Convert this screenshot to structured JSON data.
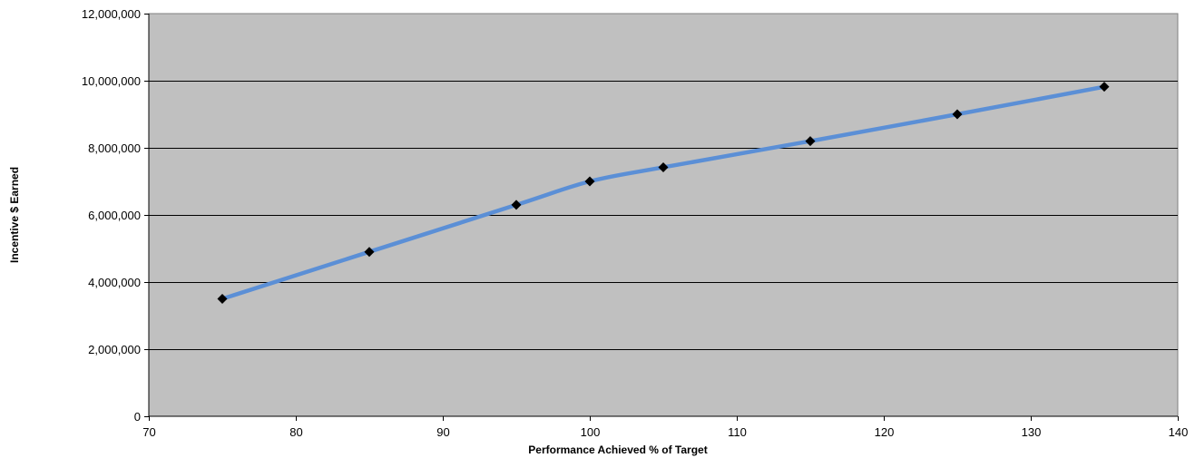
{
  "chart_data": {
    "type": "line",
    "title": "",
    "xlabel": "Performance Achieved % of Target",
    "ylabel": "Incentive $ Earned",
    "xlim": [
      70,
      140
    ],
    "ylim": [
      0,
      12000000
    ],
    "x_ticks": [
      70,
      80,
      90,
      100,
      110,
      120,
      130,
      140
    ],
    "x_tick_labels": [
      "70",
      "80",
      "90",
      "100",
      "110",
      "120",
      "130",
      "140"
    ],
    "y_ticks": [
      0,
      2000000,
      4000000,
      6000000,
      8000000,
      10000000,
      12000000
    ],
    "y_tick_labels": [
      "0",
      "2,000,000",
      "4,000,000",
      "6,000,000",
      "8,000,000",
      "10,000,000",
      "12,000,000"
    ],
    "grid": "horizontal",
    "legend": "none",
    "plot_background": "#c0c0c0",
    "gridline_color": "#000000",
    "series": [
      {
        "color": "#5b8fd6",
        "marker": "diamond",
        "marker_color": "#000000",
        "smooth": true,
        "x": [
          75,
          85,
          95,
          100,
          105,
          115,
          125,
          135
        ],
        "y": [
          3500000,
          4900000,
          6300000,
          7000000,
          7420000,
          8200000,
          9000000,
          9820000
        ]
      }
    ]
  }
}
